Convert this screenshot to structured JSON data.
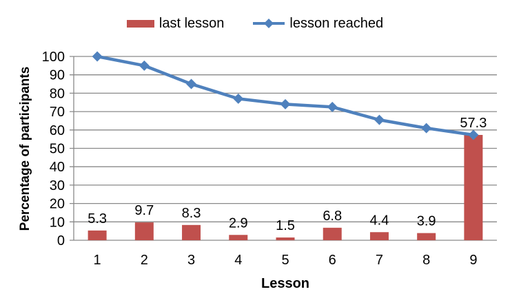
{
  "chart_data": {
    "type": "bar+line",
    "title": "",
    "categories": [
      1,
      2,
      3,
      4,
      5,
      6,
      7,
      8,
      9
    ],
    "series": [
      {
        "name": "last lesson",
        "chart_type": "bar",
        "color": "#c0504d",
        "values": [
          5.3,
          9.7,
          8.3,
          2.9,
          1.5,
          6.8,
          4.4,
          3.9,
          57.3
        ],
        "data_labels": [
          "5.3",
          "9.7",
          "8.3",
          "2.9",
          "1.5",
          "6.8",
          "4.4",
          "3.9",
          "57.3"
        ]
      },
      {
        "name": "lesson reached",
        "chart_type": "line",
        "color": "#4f81bd",
        "marker": "diamond",
        "values": [
          100,
          95,
          85,
          77,
          74,
          72.5,
          65.5,
          61,
          57.3
        ]
      }
    ],
    "xlabel": "Lesson",
    "ylabel": "Percentage of participants",
    "ylim": [
      0,
      100
    ],
    "yticks": [
      0,
      10,
      20,
      30,
      40,
      50,
      60,
      70,
      80,
      90,
      100
    ],
    "grid": "horizontal",
    "legend_position": "top-center",
    "colors": {
      "grid": "#898989",
      "axis": "#898989",
      "text": "#000000",
      "background": "#ffffff"
    }
  }
}
